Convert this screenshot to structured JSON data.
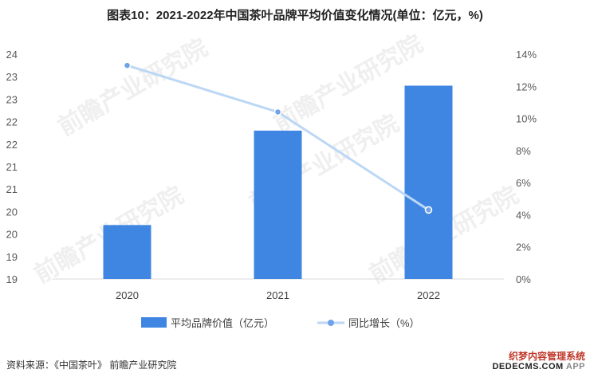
{
  "title": "图表10：2021-2022年中国茶叶品牌平均价值变化情况(单位：亿元，%)",
  "source": "资料来源：《中国茶叶》 前瞻产业研究院",
  "watermark_text": "前瞻产业研究院",
  "stamp": {
    "line1": "织梦内容管理系统",
    "line2": "DEDECMS.COM",
    "tail": "APP"
  },
  "colors": {
    "bar": "#3f86e3",
    "line": "#bcd7f5",
    "marker": "#6fa2e8",
    "axis": "#d9d9d9"
  },
  "chart_data": {
    "type": "bar+line",
    "categories": [
      "2020",
      "2021",
      "2022"
    ],
    "series": [
      {
        "name": "平均品牌价值（亿元）",
        "type": "bar",
        "axis": "left",
        "values": [
          20.2,
          22.3,
          23.3
        ]
      },
      {
        "name": "同比增长（%）",
        "type": "line",
        "axis": "right",
        "values": [
          13.3,
          10.4,
          4.3
        ]
      }
    ],
    "left_axis": {
      "ylim": [
        19,
        24
      ],
      "tick_labels": [
        "19",
        "19",
        "20",
        "20",
        "21",
        "21",
        "22",
        "22",
        "23",
        "23",
        "24"
      ]
    },
    "right_axis": {
      "ylim": [
        0,
        14
      ],
      "tick_labels": [
        "0%",
        "2%",
        "4%",
        "6%",
        "8%",
        "10%",
        "12%",
        "14%"
      ]
    },
    "legend_position": "bottom",
    "grid": false
  }
}
